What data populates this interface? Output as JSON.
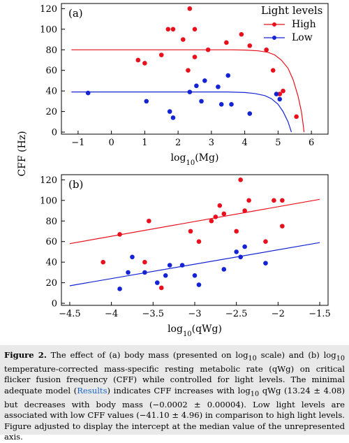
{
  "chart_data": [
    {
      "type": "scatter",
      "panel_label": "(a)",
      "xlabel": "log10(Mg)",
      "ylabel": "CFF (Hz)",
      "xlim": [
        -1.5,
        6.5
      ],
      "ylim": [
        -2,
        125
      ],
      "xticks": [
        -1,
        0,
        1,
        2,
        3,
        4,
        5,
        6
      ],
      "yticks": [
        0,
        20,
        40,
        60,
        80,
        100,
        120
      ],
      "legend": {
        "title": "Light levels",
        "position": "top-right",
        "entries": [
          "High",
          "Low"
        ]
      },
      "series": [
        {
          "name": "High",
          "color": "#e8101c",
          "points": [
            [
              0.8,
              70
            ],
            [
              1.0,
              67
            ],
            [
              1.5,
              75
            ],
            [
              1.7,
              100
            ],
            [
              1.85,
              100
            ],
            [
              2.15,
              90
            ],
            [
              2.3,
              60
            ],
            [
              2.35,
              120
            ],
            [
              2.5,
              100
            ],
            [
              2.5,
              73
            ],
            [
              2.9,
              80
            ],
            [
              3.45,
              87
            ],
            [
              3.9,
              95
            ],
            [
              4.15,
              84
            ],
            [
              4.65,
              80
            ],
            [
              4.85,
              60
            ],
            [
              5.05,
              37
            ],
            [
              5.15,
              40
            ],
            [
              5.55,
              15
            ]
          ],
          "fit_curve": [
            [
              -1.2,
              80
            ],
            [
              3.6,
              80
            ],
            [
              4.0,
              79.8
            ],
            [
              4.4,
              79
            ],
            [
              4.7,
              77.5
            ],
            [
              4.9,
              75
            ],
            [
              5.1,
              70
            ],
            [
              5.3,
              62
            ],
            [
              5.45,
              51
            ],
            [
              5.6,
              35
            ],
            [
              5.7,
              20
            ],
            [
              5.75,
              8
            ],
            [
              5.78,
              0
            ]
          ]
        },
        {
          "name": "Low",
          "color": "#1424d4",
          "points": [
            [
              -0.7,
              38
            ],
            [
              1.05,
              30
            ],
            [
              1.75,
              20
            ],
            [
              1.85,
              14
            ],
            [
              2.35,
              39
            ],
            [
              2.55,
              45
            ],
            [
              2.7,
              30
            ],
            [
              2.8,
              50
            ],
            [
              3.2,
              44
            ],
            [
              3.3,
              27
            ],
            [
              3.5,
              55
            ],
            [
              3.6,
              27
            ],
            [
              4.15,
              18
            ],
            [
              4.95,
              37
            ],
            [
              5.05,
              32
            ]
          ],
          "fit_curve": [
            [
              -1.2,
              39
            ],
            [
              3.5,
              39
            ],
            [
              4.0,
              38.5
            ],
            [
              4.3,
              37.5
            ],
            [
              4.6,
              35.5
            ],
            [
              4.8,
              32.5
            ],
            [
              5.0,
              27
            ],
            [
              5.15,
              20
            ],
            [
              5.3,
              10
            ],
            [
              5.4,
              0
            ]
          ]
        }
      ]
    },
    {
      "type": "scatter",
      "panel_label": "(b)",
      "xlabel": "log10(qWg)",
      "ylabel": "CFF (Hz)",
      "xlim": [
        -4.6,
        -1.4
      ],
      "ylim": [
        -2,
        125
      ],
      "xticks": [
        -4.5,
        -4,
        -3.5,
        -3,
        -2.5,
        -2,
        -1.5
      ],
      "yticks": [
        0,
        20,
        40,
        60,
        80,
        100,
        120
      ],
      "series": [
        {
          "name": "High",
          "color": "#e8101c",
          "points": [
            [
              -4.1,
              40
            ],
            [
              -3.9,
              67
            ],
            [
              -3.55,
              80
            ],
            [
              -3.6,
              40
            ],
            [
              -3.4,
              15
            ],
            [
              -3.05,
              70
            ],
            [
              -2.95,
              60
            ],
            [
              -2.8,
              80
            ],
            [
              -2.75,
              84
            ],
            [
              -2.7,
              95
            ],
            [
              -2.65,
              87
            ],
            [
              -2.5,
              70
            ],
            [
              -2.45,
              120
            ],
            [
              -2.4,
              90
            ],
            [
              -2.35,
              100
            ],
            [
              -2.15,
              60
            ],
            [
              -2.05,
              100
            ],
            [
              -1.95,
              100
            ],
            [
              -1.95,
              75
            ]
          ],
          "fit": [
            [
              -4.5,
              58
            ],
            [
              -1.5,
              101
            ]
          ]
        },
        {
          "name": "Low",
          "color": "#1424d4",
          "points": [
            [
              -3.9,
              14
            ],
            [
              -3.8,
              30
            ],
            [
              -3.75,
              45
            ],
            [
              -3.6,
              30
            ],
            [
              -3.45,
              20
            ],
            [
              -3.35,
              27
            ],
            [
              -3.3,
              37
            ],
            [
              -3.15,
              37
            ],
            [
              -3.0,
              27
            ],
            [
              -2.95,
              18
            ],
            [
              -2.65,
              33
            ],
            [
              -2.5,
              50
            ],
            [
              -2.45,
              45
            ],
            [
              -2.4,
              55
            ],
            [
              -2.15,
              39
            ]
          ],
          "fit": [
            [
              -4.5,
              17
            ],
            [
              -1.5,
              59
            ]
          ]
        }
      ]
    }
  ],
  "caption": {
    "label": "Figure 2.",
    "text_1": " The effect of (a) body mass (presented on log",
    "sub_1": "10",
    "text_2": " scale) and (b) log",
    "sub_2": "10",
    "text_3": " temperature-corrected mass-specific resting metabolic rate (qWg) on critical flicker fusion frequency (CFF) while controlled for light levels. The minimal adequate model (",
    "link": "Results",
    "text_4": ") indicates CFF increases with log",
    "sub_3": "10",
    "text_5": " qWg (13.24 ± 4.08) but decreases with body mass (−0.0002 ± 0.00004). Low light levels are associated with low CFF values (−41.10 ± 4.96) in comparison to high light levels. Figure adjusted to display the intercept at the median value of the unrepresented axis."
  }
}
